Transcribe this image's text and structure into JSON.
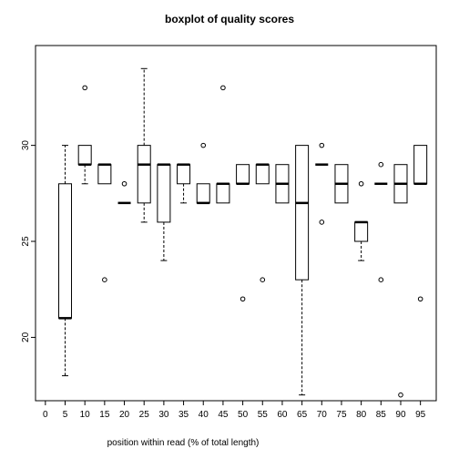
{
  "chart_data": {
    "type": "boxplot",
    "title": "boxplot of quality scores",
    "xlabel": "position within read (% of total length)",
    "ylabel": "",
    "x_ticks": [
      0,
      5,
      10,
      15,
      20,
      25,
      30,
      35,
      40,
      45,
      50,
      55,
      60,
      65,
      70,
      75,
      80,
      85,
      90,
      95
    ],
    "y_ticks": [
      20,
      25,
      30
    ],
    "xlim": [
      -0.5,
      19.8
    ],
    "ylim": [
      16.7,
      35.2
    ],
    "boxes": [
      {
        "pos": 5,
        "whisker_low": 18,
        "q1": 21,
        "median": 21,
        "q3": 28,
        "whisker_high": 30,
        "outliers": []
      },
      {
        "pos": 10,
        "whisker_low": 28,
        "q1": 29,
        "median": 29,
        "q3": 30,
        "whisker_high": 30,
        "outliers": [
          33
        ]
      },
      {
        "pos": 15,
        "whisker_low": 28,
        "q1": 28,
        "median": 29,
        "q3": 29,
        "whisker_high": 29,
        "outliers": [
          23
        ]
      },
      {
        "pos": 20,
        "whisker_low": 27,
        "q1": 27,
        "median": 27,
        "q3": 27,
        "whisker_high": 27,
        "outliers": [
          28
        ]
      },
      {
        "pos": 25,
        "whisker_low": 26,
        "q1": 27,
        "median": 29,
        "q3": 30,
        "whisker_high": 34,
        "outliers": []
      },
      {
        "pos": 30,
        "whisker_low": 24,
        "q1": 26,
        "median": 29,
        "q3": 29,
        "whisker_high": 29,
        "outliers": []
      },
      {
        "pos": 35,
        "whisker_low": 27,
        "q1": 28,
        "median": 29,
        "q3": 29,
        "whisker_high": 29,
        "outliers": []
      },
      {
        "pos": 40,
        "whisker_low": 27,
        "q1": 27,
        "median": 27,
        "q3": 28,
        "whisker_high": 28,
        "outliers": [
          30
        ]
      },
      {
        "pos": 45,
        "whisker_low": 27,
        "q1": 27,
        "median": 28,
        "q3": 28,
        "whisker_high": 28,
        "outliers": [
          33
        ]
      },
      {
        "pos": 50,
        "whisker_low": 28,
        "q1": 28,
        "median": 28,
        "q3": 29,
        "whisker_high": 29,
        "outliers": [
          22
        ]
      },
      {
        "pos": 55,
        "whisker_low": 28,
        "q1": 28,
        "median": 29,
        "q3": 29,
        "whisker_high": 29,
        "outliers": [
          23
        ]
      },
      {
        "pos": 60,
        "whisker_low": 27,
        "q1": 27,
        "median": 28,
        "q3": 29,
        "whisker_high": 29,
        "outliers": []
      },
      {
        "pos": 65,
        "whisker_low": 17,
        "q1": 23,
        "median": 27,
        "q3": 30,
        "whisker_high": 30,
        "outliers": []
      },
      {
        "pos": 70,
        "whisker_low": 29,
        "q1": 29,
        "median": 29,
        "q3": 29,
        "whisker_high": 29,
        "outliers": [
          30,
          26
        ]
      },
      {
        "pos": 75,
        "whisker_low": 27,
        "q1": 27,
        "median": 28,
        "q3": 29,
        "whisker_high": 29,
        "outliers": []
      },
      {
        "pos": 80,
        "whisker_low": 24,
        "q1": 25,
        "median": 26,
        "q3": 26,
        "whisker_high": 26,
        "outliers": [
          28
        ]
      },
      {
        "pos": 85,
        "whisker_low": 28,
        "q1": 28,
        "median": 28,
        "q3": 28,
        "whisker_high": 28,
        "outliers": [
          29,
          23
        ]
      },
      {
        "pos": 90,
        "whisker_low": 27,
        "q1": 27,
        "median": 28,
        "q3": 29,
        "whisker_high": 29,
        "outliers": [
          17
        ]
      },
      {
        "pos": 95,
        "whisker_low": 28,
        "q1": 28,
        "median": 28,
        "q3": 30,
        "whisker_high": 30,
        "outliers": [
          22
        ]
      }
    ],
    "grid": false,
    "legend": "none"
  }
}
